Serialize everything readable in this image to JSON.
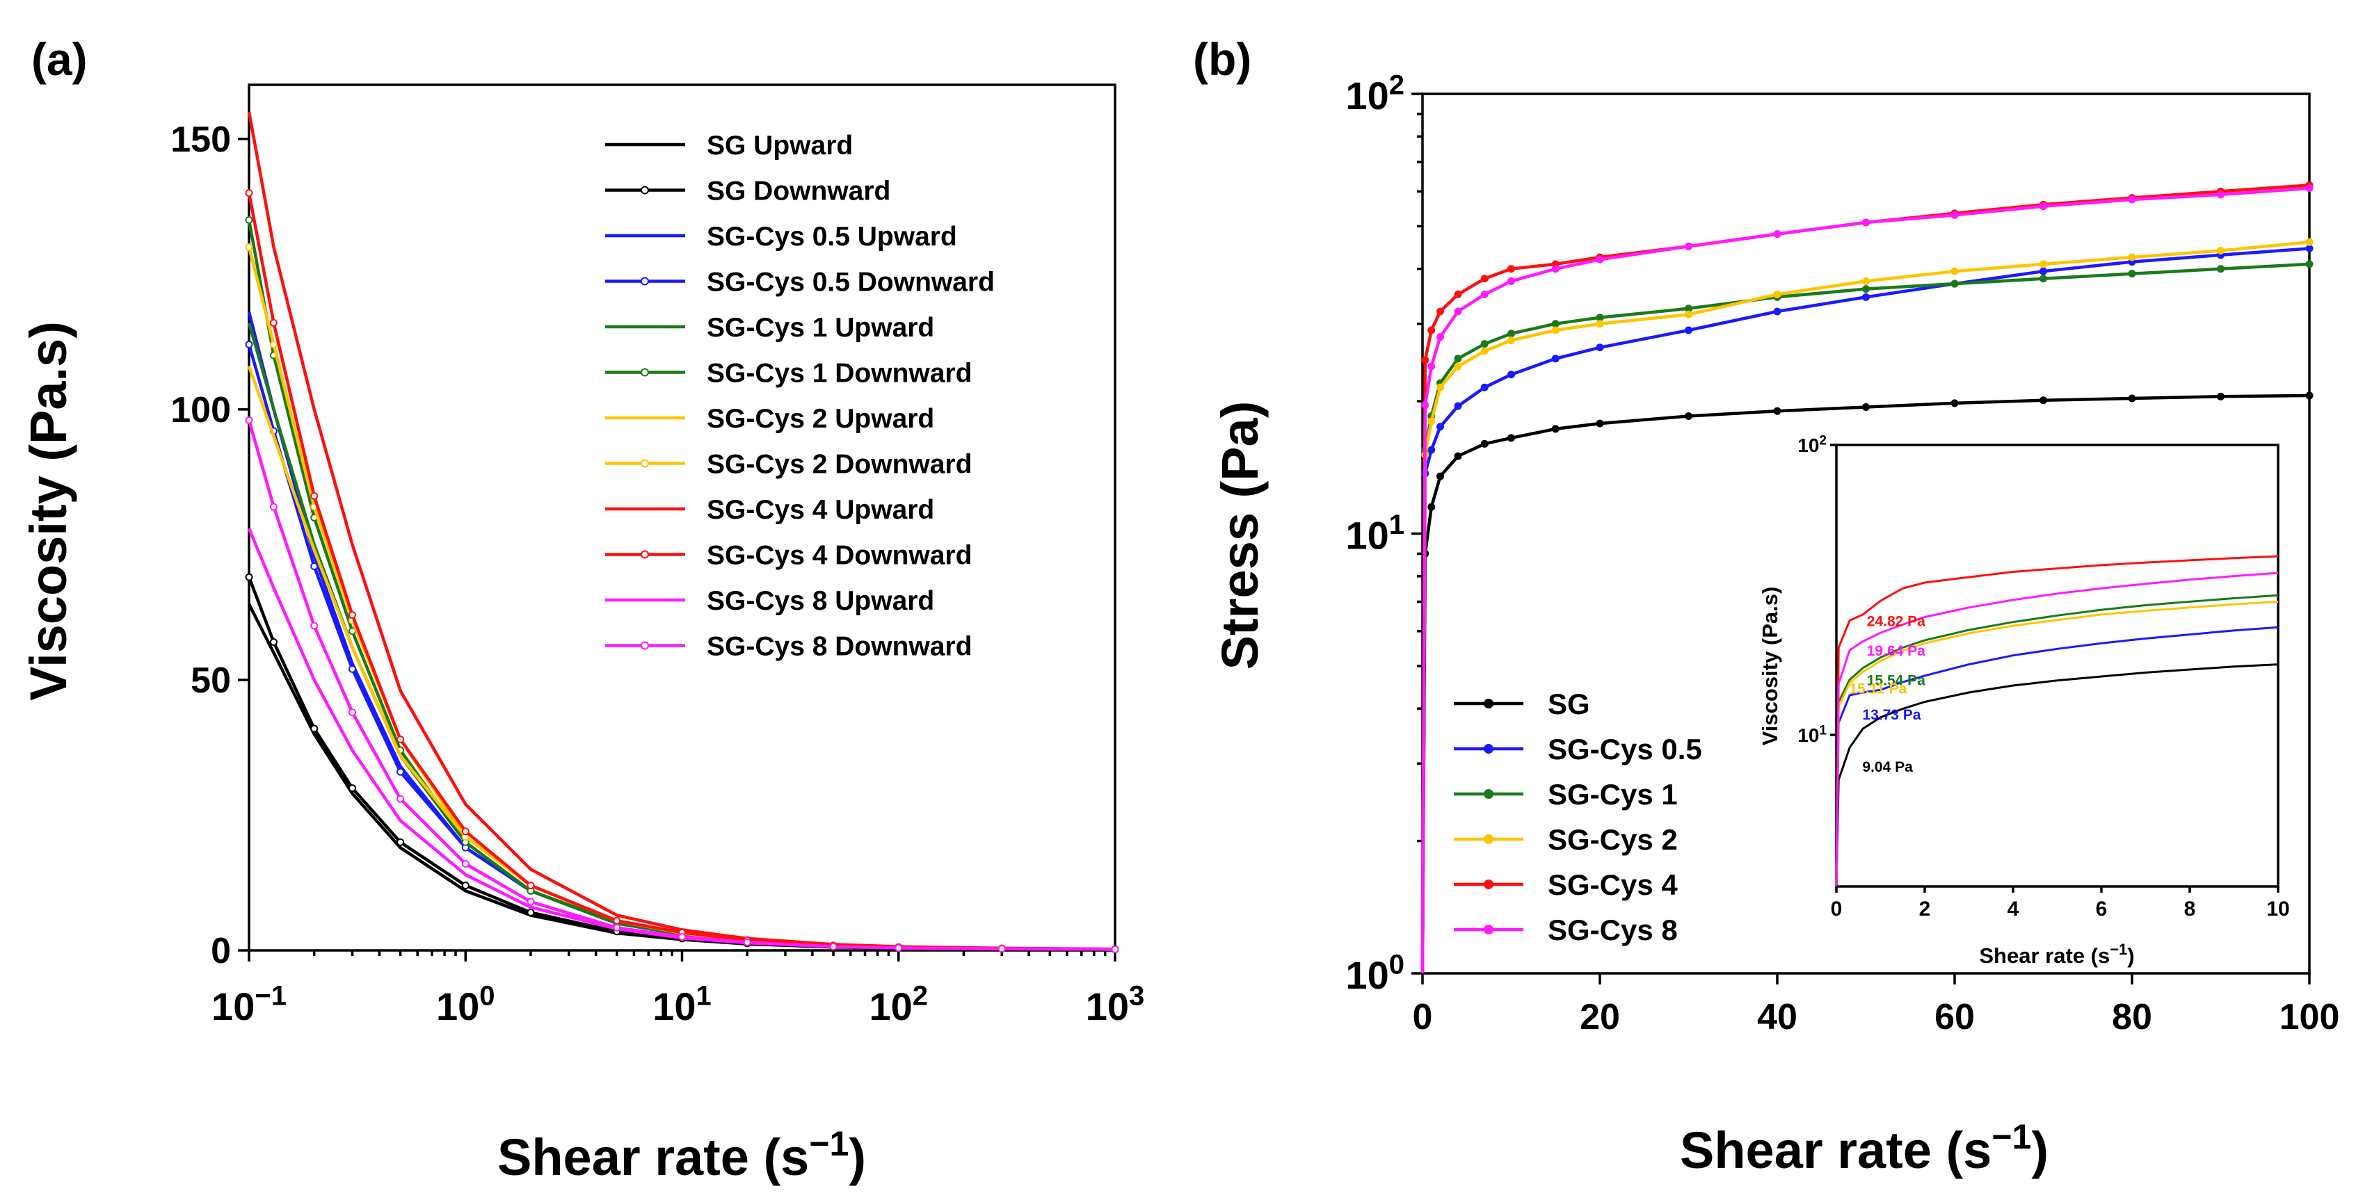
{
  "colors": {
    "SG": "#000000",
    "SG-Cys 0.5": "#1a1aff",
    "SG-Cys 1": "#1a7a1a",
    "SG-Cys 2": "#ffc400",
    "SG-Cys 4": "#ff0f0f",
    "SG-Cys 8": "#ff1aff"
  },
  "chart_data": [
    {
      "panel": "(a)",
      "type": "line",
      "xlabel_main": "Shear rate (s",
      "xlabel_sup": "−1",
      "xlabel_close": ")",
      "ylabel": "Viscosity (Pa.s)",
      "xscale": "log",
      "xlim": [
        0.1,
        1000
      ],
      "ylim": [
        0,
        160
      ],
      "xticks": [
        {
          "base": "10",
          "exp": "−1",
          "value": 0.1
        },
        {
          "base": "10",
          "exp": "0",
          "value": 1
        },
        {
          "base": "10",
          "exp": "1",
          "value": 10
        },
        {
          "base": "10",
          "exp": "2",
          "value": 100
        },
        {
          "base": "10",
          "exp": "3",
          "value": 1000
        }
      ],
      "yticks": [
        "0",
        "50",
        "100",
        "150"
      ],
      "legend_position": "top-right",
      "x": [
        0.1,
        0.13,
        0.2,
        0.3,
        0.5,
        1,
        2,
        5,
        10,
        20,
        50,
        100,
        300,
        1000
      ],
      "series": [
        {
          "name": "SG Upward",
          "color": "#000000",
          "marker": false,
          "values": [
            64,
            55,
            40,
            29,
            19,
            11,
            6.5,
            3.2,
            2,
            1.2,
            0.6,
            0.4,
            0.25,
            0.2
          ]
        },
        {
          "name": "SG Downward",
          "color": "#000000",
          "marker": true,
          "values": [
            69,
            57,
            41,
            30,
            20,
            12,
            7,
            3.5,
            2.2,
            1.3,
            0.7,
            0.45,
            0.3,
            0.2
          ]
        },
        {
          "name": "SG-Cys 0.5 Upward",
          "color": "#1a1aff",
          "marker": false,
          "values": [
            118,
            100,
            73,
            53,
            34,
            19,
            11,
            5,
            3,
            1.8,
            0.9,
            0.6,
            0.35,
            0.2
          ]
        },
        {
          "name": "SG-Cys 0.5 Downward",
          "color": "#1a1aff",
          "marker": true,
          "values": [
            112,
            96,
            71,
            52,
            33,
            19,
            11,
            5,
            3,
            1.8,
            0.9,
            0.6,
            0.35,
            0.2
          ]
        },
        {
          "name": "SG-Cys 1 Upward",
          "color": "#1a7a1a",
          "marker": false,
          "values": [
            116,
            100,
            75,
            56,
            36,
            20,
            11,
            5,
            3,
            1.8,
            0.9,
            0.6,
            0.35,
            0.2
          ]
        },
        {
          "name": "SG-Cys 1 Downward",
          "color": "#1a7a1a",
          "marker": true,
          "values": [
            135,
            110,
            80,
            59,
            37,
            20,
            11,
            5.2,
            3,
            1.8,
            0.9,
            0.6,
            0.35,
            0.2
          ]
        },
        {
          "name": "SG-Cys 2 Upward",
          "color": "#ffc400",
          "marker": false,
          "values": [
            108,
            95,
            74,
            56,
            36,
            21,
            12,
            5.5,
            3.2,
            1.9,
            0.9,
            0.6,
            0.35,
            0.2
          ]
        },
        {
          "name": "SG-Cys 2 Downward",
          "color": "#ffc400",
          "marker": true,
          "values": [
            130,
            112,
            82,
            61,
            39,
            21,
            12,
            5.5,
            3.2,
            1.9,
            0.9,
            0.6,
            0.35,
            0.2
          ]
        },
        {
          "name": "SG-Cys 4 Upward",
          "color": "#ff0f0f",
          "marker": false,
          "values": [
            155,
            130,
            100,
            75,
            48,
            27,
            15,
            6.5,
            3.8,
            2.2,
            1.1,
            0.7,
            0.4,
            0.25
          ]
        },
        {
          "name": "SG-Cys 4 Downward",
          "color": "#ff0f0f",
          "marker": true,
          "values": [
            140,
            116,
            84,
            62,
            39,
            22,
            12,
            5.5,
            3.3,
            1.9,
            0.9,
            0.6,
            0.35,
            0.2
          ]
        },
        {
          "name": "SG-Cys 8 Upward",
          "color": "#ff1aff",
          "marker": false,
          "values": [
            78,
            67,
            50,
            37,
            24,
            14,
            8,
            4,
            2.3,
            1.4,
            0.7,
            0.45,
            0.3,
            0.2
          ]
        },
        {
          "name": "SG-Cys 8 Downward",
          "color": "#ff1aff",
          "marker": true,
          "values": [
            98,
            82,
            60,
            44,
            28,
            16,
            9,
            4.2,
            2.5,
            1.5,
            0.7,
            0.45,
            0.3,
            0.2
          ]
        }
      ]
    },
    {
      "panel": "(b)",
      "type": "line",
      "xlabel_main": "Shear rate (s",
      "xlabel_sup": "−1",
      "xlabel_close": ")",
      "ylabel": "Stress (Pa)",
      "yscale": "log",
      "xlim": [
        0,
        100
      ],
      "ylim": [
        1,
        100
      ],
      "xticks": [
        "0",
        "20",
        "40",
        "60",
        "80",
        "100"
      ],
      "yticks": [
        {
          "base": "10",
          "exp": "0",
          "value": 1
        },
        {
          "base": "10",
          "exp": "1",
          "value": 10
        },
        {
          "base": "10",
          "exp": "2",
          "value": 100
        }
      ],
      "legend_position": "bottom-left",
      "x": [
        0,
        0.3,
        1,
        2,
        4,
        7,
        10,
        15,
        20,
        30,
        40,
        50,
        60,
        70,
        80,
        90,
        100
      ],
      "series": [
        {
          "name": "SG",
          "color": "#000000",
          "values": [
            1,
            9,
            11.5,
            13.5,
            15,
            16,
            16.5,
            17.3,
            17.8,
            18.5,
            19,
            19.4,
            19.8,
            20.1,
            20.3,
            20.5,
            20.6
          ]
        },
        {
          "name": "SG-Cys 0.5",
          "color": "#1a1aff",
          "values": [
            1,
            13.7,
            15.5,
            17.5,
            19.5,
            21.5,
            23,
            25,
            26.5,
            29,
            32,
            34.5,
            37,
            39.5,
            41.5,
            43,
            44.5
          ]
        },
        {
          "name": "SG-Cys 1",
          "color": "#1a7a1a",
          "values": [
            1,
            15.5,
            18.5,
            22,
            25,
            27,
            28.5,
            30,
            31,
            32.5,
            34.5,
            36,
            37,
            38,
            39,
            40,
            41
          ]
        },
        {
          "name": "SG-Cys 2",
          "color": "#ffc400",
          "values": [
            1,
            15.1,
            18,
            21.5,
            24,
            26,
            27.5,
            29,
            30,
            31.5,
            35,
            37.5,
            39.5,
            41,
            42.5,
            44,
            46
          ]
        },
        {
          "name": "SG-Cys 4",
          "color": "#ff0f0f",
          "values": [
            1,
            24.8,
            29,
            32,
            35,
            38,
            40,
            41,
            42.5,
            45,
            48,
            51,
            53.5,
            56,
            58,
            60,
            62
          ]
        },
        {
          "name": "SG-Cys 8",
          "color": "#ff1aff",
          "values": [
            1,
            19.6,
            24,
            28,
            32,
            35,
            37.5,
            40,
            42,
            45,
            48,
            51,
            53,
            55.5,
            57.5,
            59,
            61
          ]
        }
      ],
      "inset": {
        "type": "line",
        "xlabel_main": "Shear rate (s",
        "xlabel_sup": "−1",
        "xlabel_close": ")",
        "ylabel": "Viscosity (Pa.s)",
        "yscale": "log",
        "xlim": [
          0,
          10
        ],
        "ylim": [
          3,
          100
        ],
        "xticks": [
          "0",
          "2",
          "4",
          "6",
          "8",
          "10"
        ],
        "yticks": [
          {
            "base": "10",
            "exp": "1",
            "value": 10
          },
          {
            "base": "10",
            "exp": "2",
            "value": 100
          }
        ],
        "x": [
          0,
          0.05,
          0.3,
          0.6,
          1,
          1.5,
          2,
          3,
          4,
          5,
          6,
          7,
          8,
          9,
          10
        ],
        "series": [
          {
            "name": "SG",
            "color": "#000000",
            "values": [
              3,
              7,
              9.04,
              10.5,
              11.5,
              12.3,
              13,
              14,
              14.8,
              15.4,
              15.9,
              16.4,
              16.8,
              17.2,
              17.5
            ]
          },
          {
            "name": "SG-Cys 0.5",
            "color": "#1a1aff",
            "values": [
              3,
              11,
              13.7,
              14,
              14.3,
              15.2,
              16,
              17.5,
              18.8,
              19.8,
              20.7,
              21.5,
              22.2,
              22.9,
              23.5
            ]
          },
          {
            "name": "SG-Cys 1",
            "color": "#1a7a1a",
            "values": [
              3,
              13,
              15.5,
              17,
              18.5,
              20,
              21.2,
              23,
              24.5,
              25.8,
              27,
              28,
              28.8,
              29.6,
              30.3
            ]
          },
          {
            "name": "SG-Cys 2",
            "color": "#ffc400",
            "values": [
              3,
              12.5,
              15.1,
              16.5,
              18,
              19.5,
              20.7,
              22.4,
              23.8,
              24.9,
              26,
              26.8,
              27.5,
              28.2,
              28.8
            ]
          },
          {
            "name": "SG-Cys 4",
            "color": "#ff0f0f",
            "values": [
              3,
              20,
              24.8,
              26,
              29,
              32,
              33.5,
              35,
              36.5,
              37.5,
              38.5,
              39.3,
              40,
              40.7,
              41.3
            ]
          },
          {
            "name": "SG-Cys 8",
            "color": "#ff1aff",
            "values": [
              3,
              15,
              19.6,
              21,
              22.5,
              24,
              25.5,
              27.5,
              29.2,
              30.7,
              32,
              33.2,
              34.3,
              35.3,
              36.2
            ]
          }
        ],
        "annotations": [
          {
            "text": "24.82 Pa",
            "x": 0.5,
            "y": 24.8,
            "color": "#ff0f0f"
          },
          {
            "text": "19.64 Pa",
            "x": 0.5,
            "y": 19.6,
            "color": "#ff1aff"
          },
          {
            "text": "15.54 Pa",
            "x": 0.5,
            "y": 15.5,
            "color": "#1a7a1a"
          },
          {
            "text": "15.11 Pa",
            "x": 0.1,
            "y": 14.5,
            "color": "#ffc400"
          },
          {
            "text": "13.73 Pa",
            "x": 0.4,
            "y": 11.8,
            "color": "#1a1aff"
          },
          {
            "text": "9.04 Pa",
            "x": 0.4,
            "y": 7.8,
            "color": "#000000"
          }
        ]
      }
    }
  ]
}
